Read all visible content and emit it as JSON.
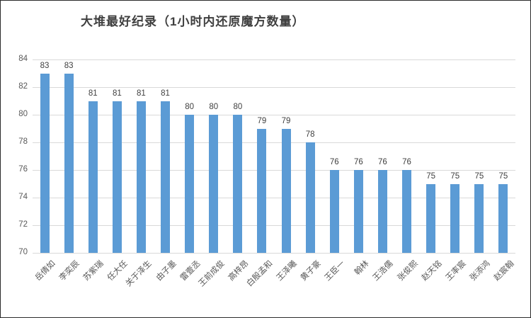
{
  "title": "大堆最好纪录（1小时内还原魔方数量）",
  "chart_data": {
    "type": "bar",
    "title": "大堆最好纪录（1小时内还原魔方数量）",
    "categories": [
      "岳倩如",
      "李奕辰",
      "苏紫瑞",
      "任大任",
      "关于泽生",
      "由子墨",
      "雷壹丞",
      "王前成俊",
      "高梓昂",
      "白殷孟和",
      "王泽曦",
      "黄子豪",
      "王臣一",
      "翰林",
      "王浩儒",
      "张俊熙",
      "赵天铭",
      "王率宸",
      "张添鸿",
      "赵宸翰"
    ],
    "values": [
      83,
      83,
      81,
      81,
      81,
      81,
      80,
      80,
      80,
      79,
      79,
      78,
      76,
      76,
      76,
      76,
      75,
      75,
      75,
      75
    ],
    "xlabel": "",
    "ylabel": "",
    "ylim": [
      70,
      84
    ],
    "yticks": [
      70,
      72,
      74,
      76,
      78,
      80,
      82,
      84
    ],
    "grid": true,
    "legend_position": "none",
    "bar_color": "#5b9bd5",
    "gridline_color": "#d9d9d9",
    "axis_label_color": "#595959",
    "title_color": "#3f3f3f"
  }
}
